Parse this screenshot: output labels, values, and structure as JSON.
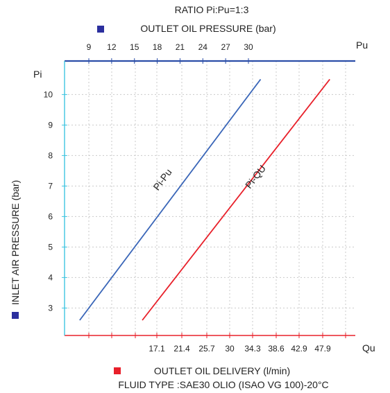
{
  "chart_data": {
    "type": "line",
    "title": "RATIO  Pi:Pu=1:3",
    "top_axis": {
      "legend_label": "OUTLET OIL PRESSURE (bar)",
      "legend_color": "#2b2f9e",
      "symbol": "Pu",
      "ticks": [
        9,
        12,
        15,
        18,
        21,
        24,
        27,
        30
      ],
      "tick_labels": [
        "9",
        "12",
        "15",
        "18",
        "21",
        "24",
        "27",
        "30"
      ]
    },
    "bottom_axis": {
      "legend_label": "OUTLET OIL DELIVERY (l/min)",
      "legend_color": "#e8202a",
      "symbol": "Qu",
      "ticks": [
        17.1,
        21.4,
        25.7,
        30,
        34.3,
        38.6,
        42.9,
        47.9
      ],
      "tick_labels": [
        "17.1",
        "21.4",
        "25.7",
        "30",
        "34.3",
        "38.6",
        "42.9",
        "47.9"
      ]
    },
    "left_axis": {
      "legend_label": "INLET AIR PRESSURE (bar)",
      "legend_color": "#2b2f9e",
      "symbol": "Pi",
      "ticks": [
        3,
        4,
        5,
        6,
        7,
        8,
        9,
        10
      ],
      "tick_labels": [
        "3",
        "4",
        "5",
        "6",
        "7",
        "8",
        "9",
        "10"
      ],
      "ylim": [
        2.1,
        11.1
      ]
    },
    "series": [
      {
        "name": "Pi-Pu",
        "axis": "top",
        "color": "#3a66b8",
        "points": [
          [
            7.8,
            2.6
          ],
          [
            31.6,
            10.5
          ]
        ]
      },
      {
        "name": "Pi-QU",
        "axis": "bottom",
        "color": "#e8202a",
        "points": [
          [
            14.6,
            2.6
          ],
          [
            49.4,
            10.5
          ]
        ]
      }
    ],
    "grid": true
  },
  "footer": {
    "fluid_type": "FLUID TYPE :SAE30 OLIO (ISAO VG 100)-20°C"
  }
}
